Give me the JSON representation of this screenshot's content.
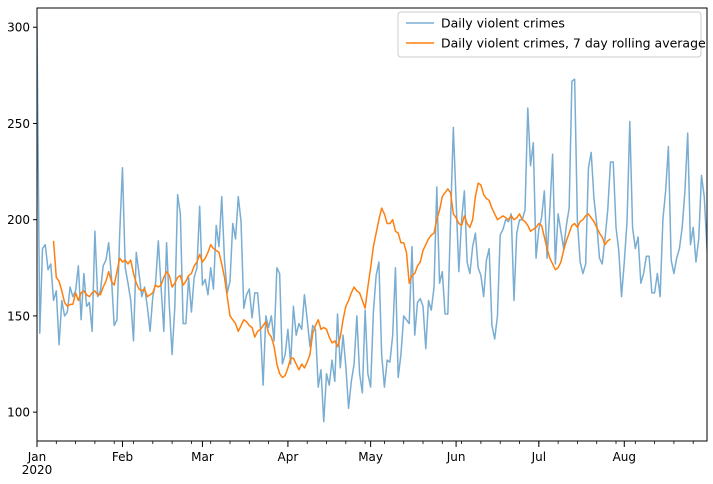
{
  "chart_data": {
    "type": "line",
    "ylim": [
      85,
      310
    ],
    "x_range": [
      "2020-01-01",
      "2020-08-31"
    ],
    "yticks": [
      100,
      150,
      200,
      250,
      300
    ],
    "xticks": [
      {
        "date": "2020-01-01",
        "label": "Jan",
        "sublabel": "2020"
      },
      {
        "date": "2020-02-01",
        "label": "Feb"
      },
      {
        "date": "2020-03-01",
        "label": "Mar"
      },
      {
        "date": "2020-04-01",
        "label": "Apr"
      },
      {
        "date": "2020-05-01",
        "label": "May"
      },
      {
        "date": "2020-06-01",
        "label": "Jun"
      },
      {
        "date": "2020-07-01",
        "label": "Jul"
      },
      {
        "date": "2020-08-01",
        "label": "Aug"
      }
    ],
    "legend_position": "top-right",
    "series": [
      {
        "name": "Daily violent crimes",
        "color": "#1f77b4",
        "opacity": 0.6,
        "start_date": "2020-01-01",
        "values": [
          300,
          141,
          185,
          187,
          174,
          177,
          158,
          163,
          135,
          158,
          150,
          152,
          165,
          160,
          163,
          176,
          148,
          172,
          155,
          157,
          142,
          194,
          160,
          163,
          176,
          179,
          188,
          170,
          145,
          148,
          193,
          227,
          175,
          167,
          158,
          137,
          183,
          172,
          160,
          165,
          155,
          142,
          160,
          167,
          189,
          165,
          142,
          188,
          155,
          130,
          155,
          213,
          203,
          146,
          146,
          170,
          152,
          170,
          175,
          207,
          166,
          169,
          161,
          175,
          164,
          197,
          186,
          212,
          179,
          162,
          168,
          198,
          190,
          212,
          199,
          154,
          161,
          164,
          149,
          162,
          162,
          145,
          114,
          150,
          144,
          150,
          137,
          175,
          172,
          125,
          130,
          143,
          125,
          155,
          140,
          146,
          143,
          161,
          148,
          134,
          145,
          143,
          113,
          122,
          95,
          120,
          114,
          127,
          116,
          151,
          123,
          140,
          124,
          102,
          116,
          125,
          150,
          120,
          110,
          153,
          120,
          113,
          152,
          171,
          178,
          130,
          113,
          127,
          126,
          140,
          175,
          118,
          130,
          150,
          148,
          146,
          186,
          140,
          157,
          159,
          155,
          133,
          158,
          153,
          165,
          217,
          167,
          173,
          151,
          151,
          200,
          248,
          210,
          173,
          200,
          215,
          178,
          172,
          186,
          193,
          175,
          171,
          160,
          179,
          185,
          145,
          138,
          150,
          192,
          195,
          200,
          199,
          203,
          158,
          193,
          200,
          200,
          205,
          258,
          228,
          240,
          180,
          195,
          201,
          215,
          180,
          205,
          234,
          177,
          203,
          194,
          185,
          197,
          206,
          272,
          273,
          199,
          178,
          172,
          177,
          227,
          235,
          211,
          198,
          180,
          177,
          190,
          205,
          230,
          230,
          196,
          184,
          160,
          178,
          199,
          251,
          196,
          185,
          191,
          167,
          172,
          181,
          181,
          162,
          162,
          172,
          160,
          200,
          215,
          238,
          179,
          172,
          180,
          185,
          196,
          215,
          245,
          187,
          196,
          178,
          190,
          223,
          212,
          185,
          164,
          180,
          178,
          192
        ]
      },
      {
        "name": "Daily violent crimes, 7 day rolling average",
        "color": "#ff7f0e",
        "opacity": 1,
        "start_date": "2020-01-07",
        "values": [
          189,
          170,
          168,
          163,
          157,
          155,
          156,
          156,
          162,
          158,
          162,
          163,
          161,
          160,
          162,
          163,
          161,
          161,
          165,
          168,
          173,
          168,
          166,
          173,
          180,
          178,
          179,
          177,
          179,
          172,
          167,
          164,
          163,
          164,
          160,
          161,
          162,
          166,
          165,
          166,
          170,
          173,
          171,
          165,
          167,
          170,
          171,
          166,
          168,
          171,
          172,
          176,
          178,
          182,
          178,
          180,
          183,
          187,
          185,
          184,
          183,
          177,
          170,
          160,
          150,
          148,
          146,
          142,
          145,
          148,
          147,
          145,
          144,
          139,
          142,
          143,
          145,
          147,
          141,
          139,
          134,
          125,
          120,
          118,
          119,
          123,
          128,
          128,
          125,
          122,
          125,
          123,
          126,
          130,
          141,
          145,
          148,
          143,
          144,
          143,
          139,
          136,
          137,
          134,
          139,
          148,
          155,
          158,
          162,
          165,
          163,
          162,
          158,
          154,
          165,
          175,
          186,
          193,
          200,
          206,
          203,
          198,
          198,
          200,
          194,
          193,
          188,
          188,
          183,
          167,
          171,
          172,
          176,
          178,
          184,
          187,
          190,
          192,
          193,
          200,
          205,
          212,
          214,
          216,
          214,
          203,
          201,
          198,
          197,
          202,
          198,
          196,
          200,
          212,
          219,
          218,
          213,
          211,
          210,
          206,
          203,
          200,
          201,
          202,
          201,
          200,
          202,
          200,
          201,
          203,
          200,
          199,
          197,
          194,
          195,
          196,
          198,
          197,
          191,
          185,
          180,
          177,
          174,
          175,
          178,
          184,
          189,
          193,
          197,
          198,
          196,
          199,
          200,
          202,
          203,
          201,
          199,
          196,
          193,
          191,
          187,
          189,
          190
        ]
      }
    ]
  }
}
